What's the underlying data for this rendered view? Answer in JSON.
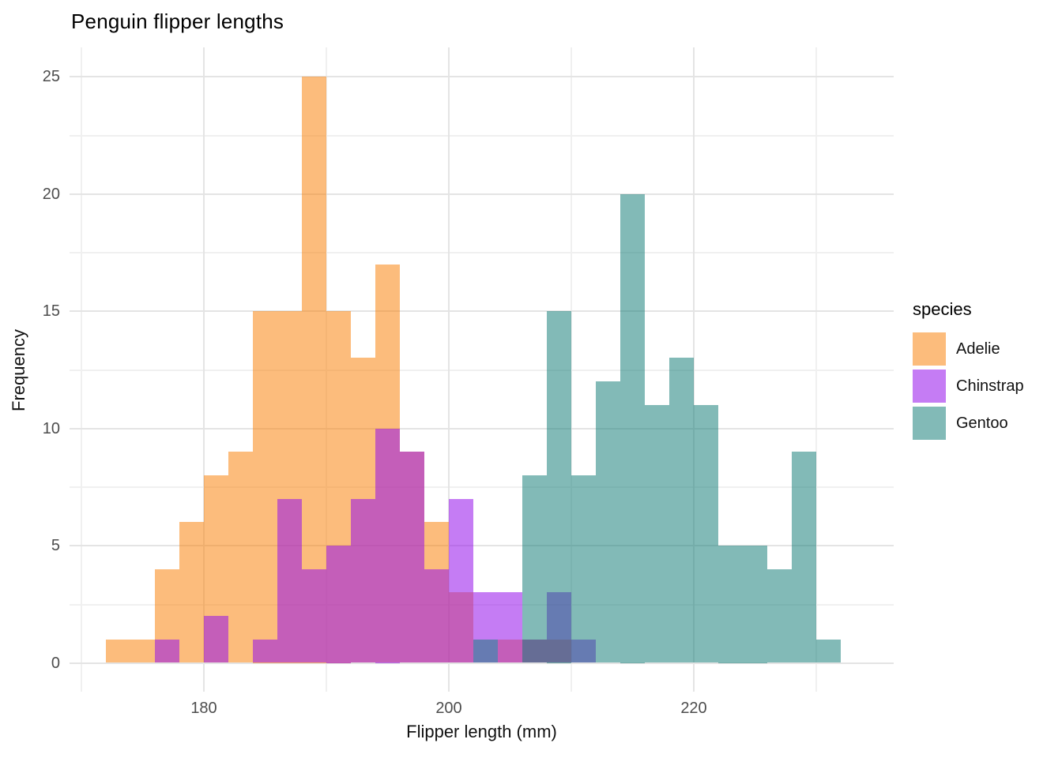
{
  "title": "Penguin flipper lengths",
  "axes": {
    "x_title": "Flipper length (mm)",
    "y_title": "Frequency",
    "x_ticks": [
      {
        "label": "180",
        "mm": 180
      },
      {
        "label": "200",
        "mm": 200
      },
      {
        "label": "220",
        "mm": 220
      }
    ],
    "x_minor_gridlines_mm": [
      170,
      190,
      210,
      230
    ],
    "y_ticks": [
      {
        "label": "0",
        "value": 0
      },
      {
        "label": "5",
        "value": 5
      },
      {
        "label": "10",
        "value": 10
      },
      {
        "label": "15",
        "value": 15
      },
      {
        "label": "20",
        "value": 20
      },
      {
        "label": "25",
        "value": 25
      }
    ],
    "y_minor_gridlines": [
      2.5,
      7.5,
      12.5,
      17.5,
      22.5
    ]
  },
  "legend": {
    "title": "species",
    "items": [
      {
        "label": "Adelie"
      },
      {
        "label": "Chinstrap"
      },
      {
        "label": "Gentoo"
      }
    ]
  },
  "chart_data": {
    "type": "histogram",
    "subtype": "overlaid-transparent",
    "title": "Penguin flipper lengths",
    "xlabel": "Flipper length (mm)",
    "ylabel": "Frequency",
    "binwidth": 2,
    "bin_left_edges": [
      172,
      174,
      176,
      178,
      180,
      182,
      184,
      186,
      188,
      190,
      192,
      194,
      196,
      198,
      200,
      202,
      204,
      206,
      208,
      210,
      212,
      214,
      216,
      218,
      220,
      222,
      224,
      226,
      228,
      230
    ],
    "series": [
      {
        "name": "Adelie",
        "color_rgba": "rgba(250,126,4,0.52)",
        "color_flat_hex": "#FCBB7D",
        "counts": [
          1,
          1,
          4,
          6,
          8,
          9,
          15,
          15,
          25,
          15,
          13,
          17,
          9,
          6,
          3,
          0,
          1,
          1,
          1,
          0,
          0,
          0,
          0,
          0,
          0,
          0,
          0,
          0,
          0,
          0
        ]
      },
      {
        "name": "Chinstrap",
        "color_rgba": "rgba(150,16,235,0.55)",
        "color_flat_hex": "#C57BF4",
        "counts": [
          0,
          0,
          1,
          0,
          2,
          0,
          1,
          7,
          4,
          5,
          7,
          10,
          9,
          4,
          7,
          3,
          3,
          1,
          3,
          1,
          0,
          0,
          0,
          0,
          0,
          0,
          0,
          0,
          0,
          0
        ]
      },
      {
        "name": "Gentoo",
        "color_rgba": "rgba(15,122,117,0.52)",
        "color_flat_hex": "#82B9B7",
        "counts": [
          0,
          0,
          0,
          0,
          0,
          0,
          0,
          0,
          0,
          0,
          0,
          0,
          0,
          0,
          0,
          1,
          0,
          8,
          15,
          8,
          12,
          20,
          11,
          13,
          11,
          5,
          5,
          4,
          9,
          1
        ]
      }
    ],
    "xlim_visible": [
      169,
      236
    ],
    "ylim": [
      0,
      25
    ],
    "grid": "major+minor",
    "legend_position": "right",
    "grid_color_major": "#e4e4e4",
    "grid_color_minor": "#f0f0f0",
    "tick_label_color": "#4d4d4d"
  }
}
